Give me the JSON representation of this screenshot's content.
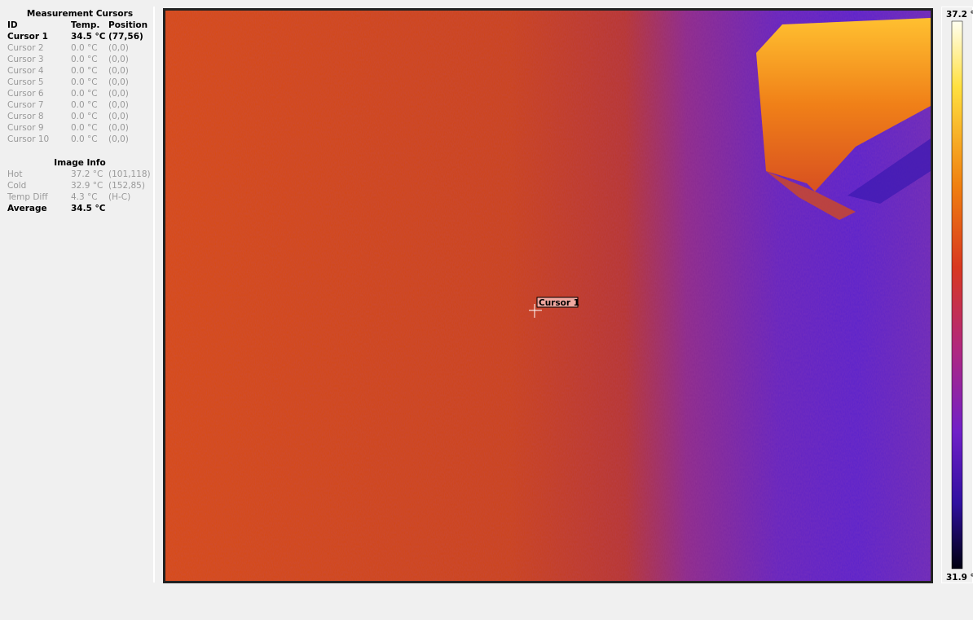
{
  "cursors_panel": {
    "title": "Measurement Cursors",
    "headers": [
      "ID",
      "Temp.",
      "Position"
    ],
    "rows": [
      [
        "Cursor 1",
        "34.5 °C",
        "(77,56)"
      ],
      [
        "Cursor 2",
        "0.0 °C",
        "(0,0)"
      ],
      [
        "Cursor 3",
        "0.0 °C",
        "(0,0)"
      ],
      [
        "Cursor 4",
        "0.0 °C",
        "(0,0)"
      ],
      [
        "Cursor 5",
        "0.0 °C",
        "(0,0)"
      ],
      [
        "Cursor 6",
        "0.0 °C",
        "(0,0)"
      ],
      [
        "Cursor 7",
        "0.0 °C",
        "(0,0)"
      ],
      [
        "Cursor 8",
        "0.0 °C",
        "(0,0)"
      ],
      [
        "Cursor 9",
        "0.0 °C",
        "(0,0)"
      ],
      [
        "Cursor 10",
        "0.0 °C",
        "(0,0)"
      ]
    ]
  },
  "image_info": {
    "title": "Image Info",
    "rows": [
      [
        "Hot",
        "37.2 °C",
        "(101,118)"
      ],
      [
        "Cold",
        "32.9 °C",
        "(152,85)"
      ],
      [
        "Temp Diff",
        "4.3 °C",
        "(H-C)"
      ],
      [
        "Average",
        "34.5 °C"
      ]
    ]
  },
  "image": {
    "cursor_label": "Cursor 1"
  },
  "scale": {
    "max": "37.2 °",
    "min": "31.9 °"
  }
}
